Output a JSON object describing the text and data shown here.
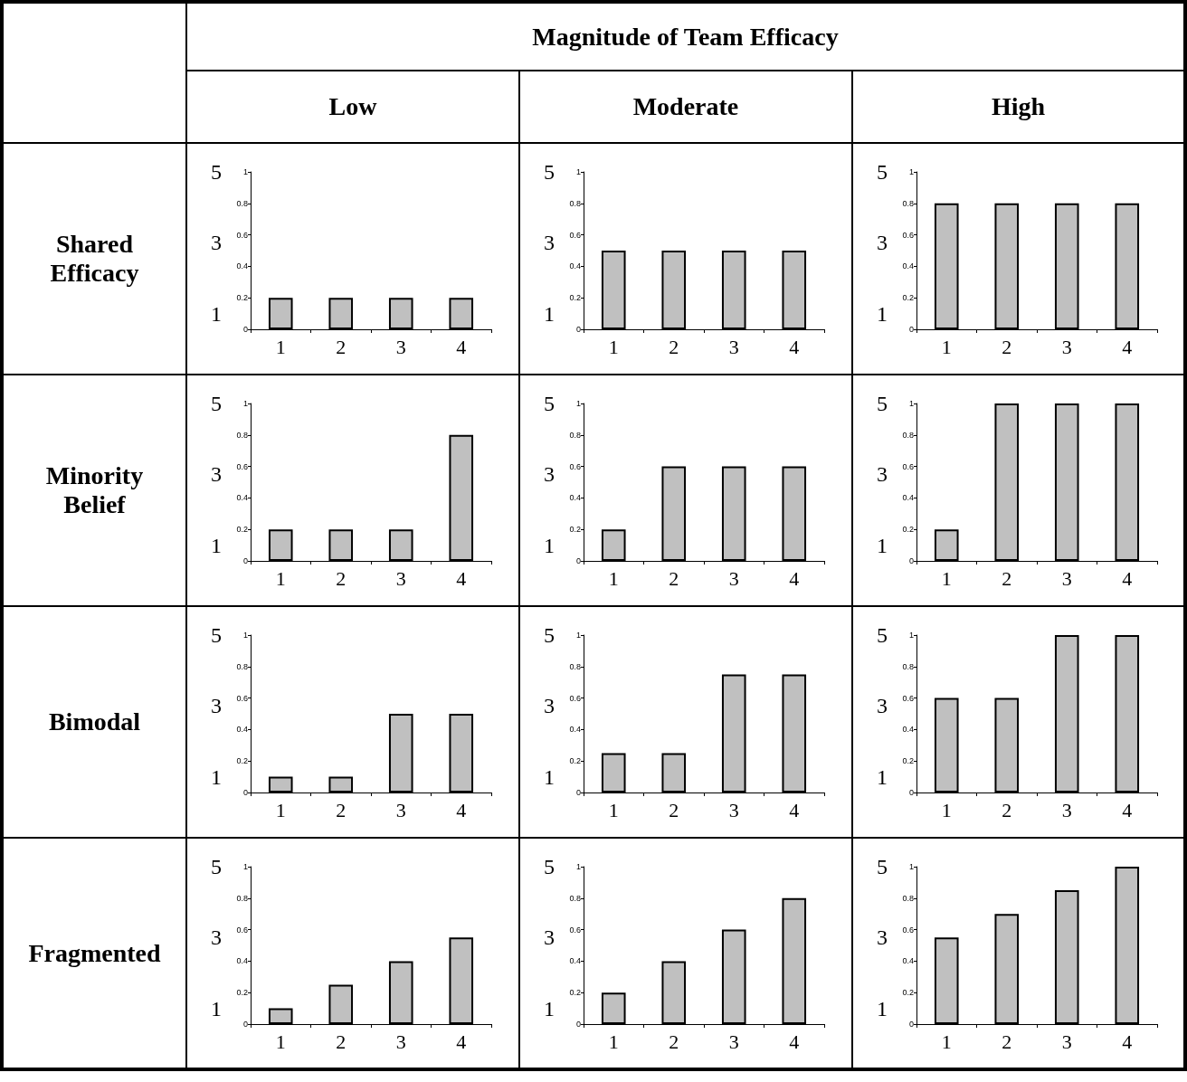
{
  "chart_data": [
    {
      "type": "other",
      "title": "Magnitude of Team Efficacy",
      "categories": [
        "Low",
        "Moderate",
        "High"
      ],
      "y_categories": [
        "Shared Efficacy",
        "Minority Belief",
        "Bimodal",
        "Fragmented"
      ]
    },
    {
      "type": "bar",
      "categories": [
        "1",
        "2",
        "3",
        "4"
      ],
      "values": [
        0.2,
        0.2,
        0.2,
        0.2
      ],
      "color": "#c0c0c0",
      "ylim": [
        0,
        1
      ],
      "yticks": [
        0,
        0.2,
        0.4,
        0.6,
        0.8,
        1
      ],
      "y2lim": [
        0.56,
        5
      ],
      "y2ticks": [
        1,
        3,
        5
      ],
      "grid": false
    },
    {
      "type": "bar",
      "categories": [
        "1",
        "2",
        "3",
        "4"
      ],
      "values": [
        0.5,
        0.5,
        0.5,
        0.5
      ],
      "color": "#c0c0c0",
      "ylim": [
        0,
        1
      ],
      "yticks": [
        0,
        0.2,
        0.4,
        0.6,
        0.8,
        1
      ],
      "y2lim": [
        0.56,
        5
      ],
      "y2ticks": [
        1,
        3,
        5
      ],
      "grid": false
    },
    {
      "type": "bar",
      "categories": [
        "1",
        "2",
        "3",
        "4"
      ],
      "values": [
        0.8,
        0.8,
        0.8,
        0.8
      ],
      "color": "#c0c0c0",
      "ylim": [
        0,
        1
      ],
      "yticks": [
        0,
        0.2,
        0.4,
        0.6,
        0.8,
        1
      ],
      "y2lim": [
        0.56,
        5
      ],
      "y2ticks": [
        1,
        3,
        5
      ],
      "grid": false
    },
    {
      "type": "bar",
      "categories": [
        "1",
        "2",
        "3",
        "4"
      ],
      "values": [
        0.2,
        0.2,
        0.2,
        0.8
      ],
      "color": "#c0c0c0",
      "ylim": [
        0,
        1
      ],
      "yticks": [
        0,
        0.2,
        0.4,
        0.6,
        0.8,
        1
      ],
      "y2lim": [
        0.56,
        5
      ],
      "y2ticks": [
        1,
        3,
        5
      ],
      "grid": false
    },
    {
      "type": "bar",
      "categories": [
        "1",
        "2",
        "3",
        "4"
      ],
      "values": [
        0.2,
        0.6,
        0.6,
        0.6
      ],
      "color": "#c0c0c0",
      "ylim": [
        0,
        1
      ],
      "yticks": [
        0,
        0.2,
        0.4,
        0.6,
        0.8,
        1
      ],
      "y2lim": [
        0.56,
        5
      ],
      "y2ticks": [
        1,
        3,
        5
      ],
      "grid": false
    },
    {
      "type": "bar",
      "categories": [
        "1",
        "2",
        "3",
        "4"
      ],
      "values": [
        0.2,
        1,
        1,
        1
      ],
      "color": "#c0c0c0",
      "ylim": [
        0,
        1
      ],
      "yticks": [
        0,
        0.2,
        0.4,
        0.6,
        0.8,
        1
      ],
      "y2lim": [
        0.56,
        5
      ],
      "y2ticks": [
        1,
        3,
        5
      ],
      "grid": false
    },
    {
      "type": "bar",
      "categories": [
        "1",
        "2",
        "3",
        "4"
      ],
      "values": [
        0.1,
        0.1,
        0.5,
        0.5
      ],
      "color": "#c0c0c0",
      "ylim": [
        0,
        1
      ],
      "yticks": [
        0,
        0.2,
        0.4,
        0.6,
        0.8,
        1
      ],
      "y2lim": [
        0.56,
        5
      ],
      "y2ticks": [
        1,
        3,
        5
      ],
      "grid": false
    },
    {
      "type": "bar",
      "categories": [
        "1",
        "2",
        "3",
        "4"
      ],
      "values": [
        0.25,
        0.25,
        0.75,
        0.75
      ],
      "color": "#c0c0c0",
      "ylim": [
        0,
        1
      ],
      "yticks": [
        0,
        0.2,
        0.4,
        0.6,
        0.8,
        1
      ],
      "y2lim": [
        0.56,
        5
      ],
      "y2ticks": [
        1,
        3,
        5
      ],
      "grid": false
    },
    {
      "type": "bar",
      "categories": [
        "1",
        "2",
        "3",
        "4"
      ],
      "values": [
        0.6,
        0.6,
        1,
        1
      ],
      "color": "#c0c0c0",
      "ylim": [
        0,
        1
      ],
      "yticks": [
        0,
        0.2,
        0.4,
        0.6,
        0.8,
        1
      ],
      "y2lim": [
        0.56,
        5
      ],
      "y2ticks": [
        1,
        3,
        5
      ],
      "grid": false
    },
    {
      "type": "bar",
      "categories": [
        "1",
        "2",
        "3",
        "4"
      ],
      "values": [
        0.1,
        0.25,
        0.4,
        0.55
      ],
      "color": "#c0c0c0",
      "ylim": [
        0,
        1
      ],
      "yticks": [
        0,
        0.2,
        0.4,
        0.6,
        0.8,
        1
      ],
      "y2lim": [
        0.56,
        5
      ],
      "y2ticks": [
        1,
        3,
        5
      ],
      "grid": false
    },
    {
      "type": "bar",
      "categories": [
        "1",
        "2",
        "3",
        "4"
      ],
      "values": [
        0.2,
        0.4,
        0.6,
        0.8
      ],
      "color": "#c0c0c0",
      "ylim": [
        0,
        1
      ],
      "yticks": [
        0,
        0.2,
        0.4,
        0.6,
        0.8,
        1
      ],
      "y2lim": [
        0.56,
        5
      ],
      "y2ticks": [
        1,
        3,
        5
      ],
      "grid": false
    },
    {
      "type": "bar",
      "categories": [
        "1",
        "2",
        "3",
        "4"
      ],
      "values": [
        0.55,
        0.7,
        0.85,
        1
      ],
      "color": "#c0c0c0",
      "ylim": [
        0,
        1
      ],
      "yticks": [
        0,
        0.2,
        0.4,
        0.6,
        0.8,
        1
      ],
      "y2lim": [
        0.56,
        5
      ],
      "y2ticks": [
        1,
        3,
        5
      ],
      "grid": false
    }
  ]
}
